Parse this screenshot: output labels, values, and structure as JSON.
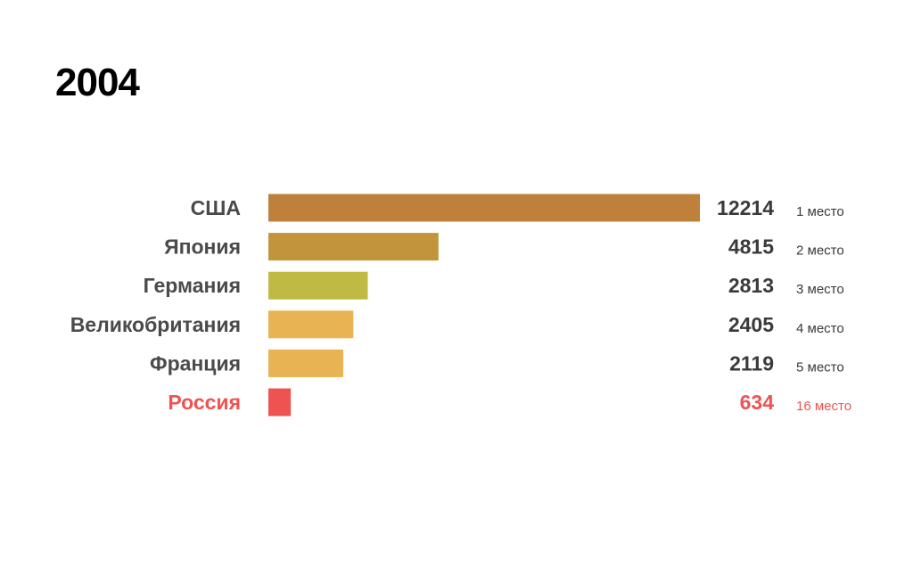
{
  "chart_data": {
    "type": "bar",
    "orientation": "horizontal",
    "title": "2004",
    "categories": [
      "США",
      "Япония",
      "Германия",
      "Великобритания",
      "Франция",
      "Россия"
    ],
    "values": [
      12214,
      4815,
      2813,
      2405,
      2119,
      634
    ],
    "ranks": [
      "1 место",
      "2 место",
      "3 место",
      "4 место",
      "5 место",
      "16 место"
    ],
    "colors": [
      "#bf803b",
      "#c2953c",
      "#bfba43",
      "#e8b352",
      "#e8b352",
      "#ee5352"
    ],
    "label_colors": [
      "#4a4a4a",
      "#4a4a4a",
      "#4a4a4a",
      "#4a4a4a",
      "#4a4a4a",
      "#ee5352"
    ],
    "xlim": [
      0,
      12214
    ],
    "grid": false,
    "legend": "none"
  }
}
